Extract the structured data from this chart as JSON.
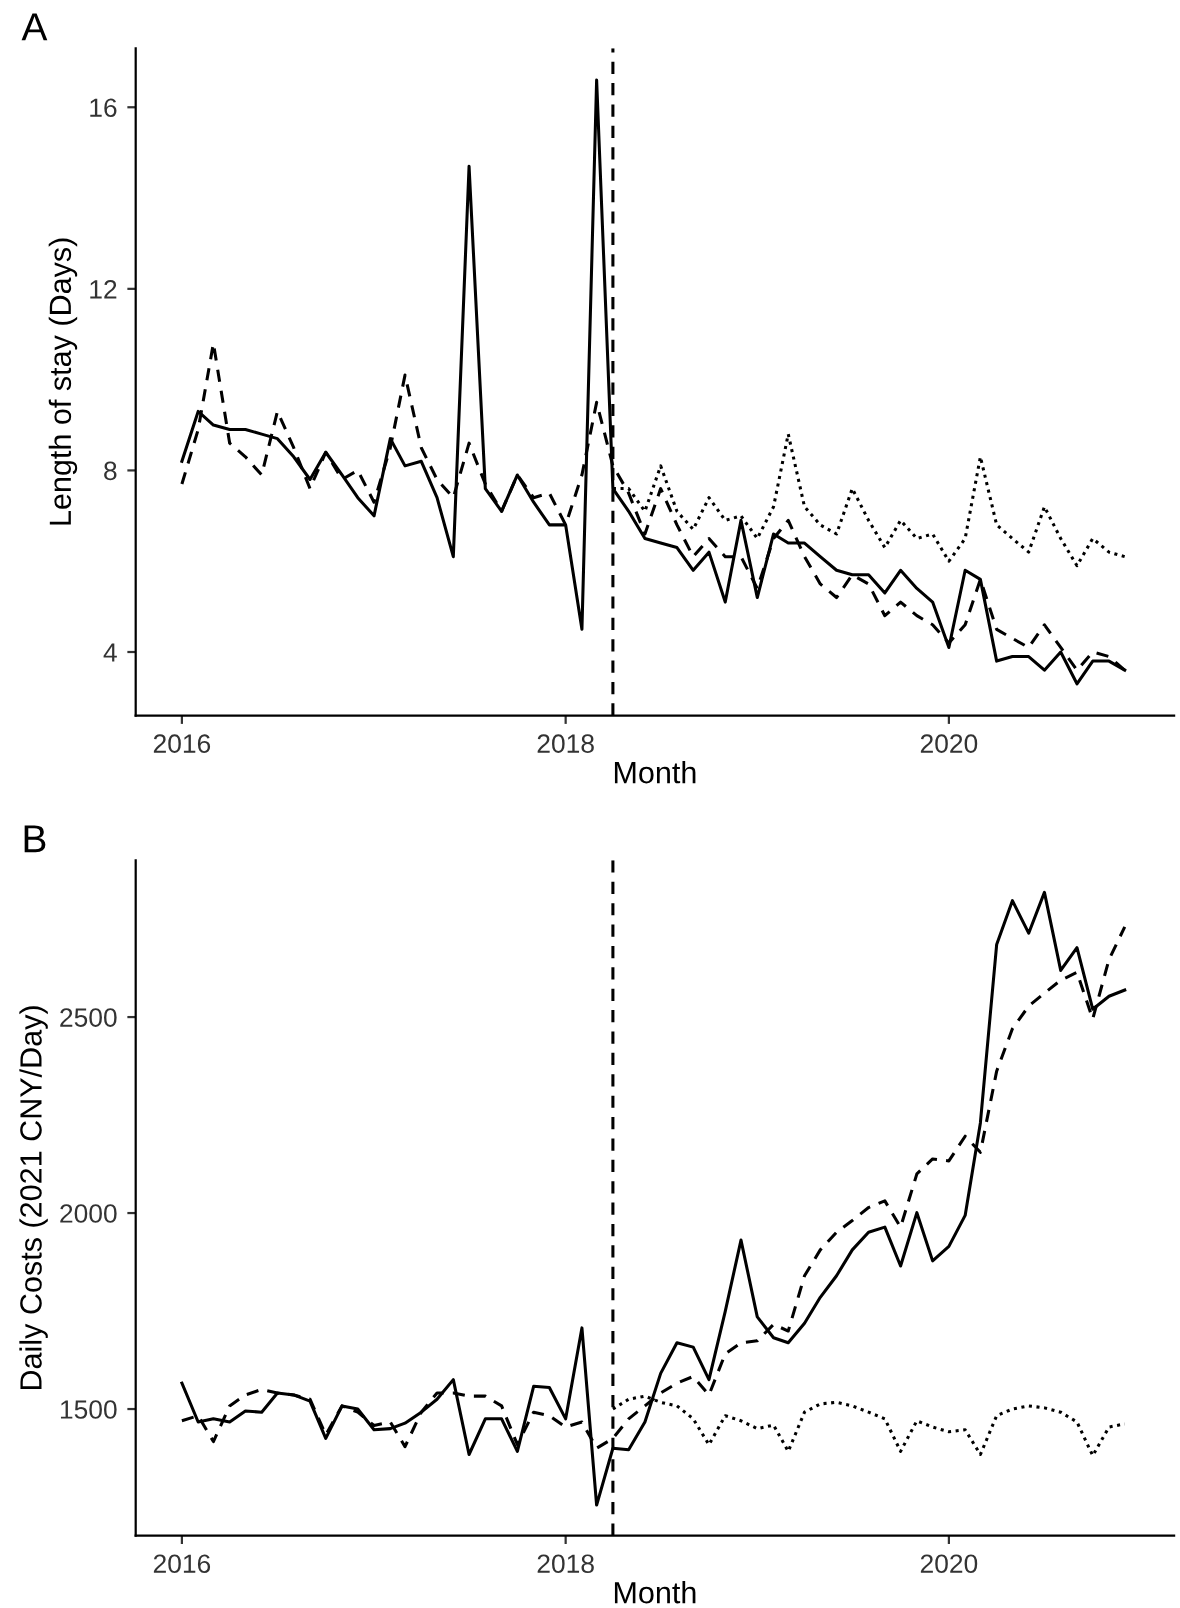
{
  "chart_data": [
    {
      "type": "line",
      "title": "A",
      "xlabel": "Month",
      "ylabel": "Length of stay (Days)",
      "x": [
        "2016-01",
        "2016-02",
        "2016-03",
        "2016-04",
        "2016-05",
        "2016-06",
        "2016-07",
        "2016-08",
        "2016-09",
        "2016-10",
        "2016-11",
        "2016-12",
        "2017-01",
        "2017-02",
        "2017-03",
        "2017-04",
        "2017-05",
        "2017-06",
        "2017-07",
        "2017-08",
        "2017-09",
        "2017-10",
        "2017-11",
        "2017-12",
        "2018-01",
        "2018-02",
        "2018-03",
        "2018-04",
        "2018-05",
        "2018-06",
        "2018-07",
        "2018-08",
        "2018-09",
        "2018-10",
        "2018-11",
        "2018-12",
        "2019-01",
        "2019-02",
        "2019-03",
        "2019-04",
        "2019-05",
        "2019-06",
        "2019-07",
        "2019-08",
        "2019-09",
        "2019-10",
        "2019-11",
        "2019-12",
        "2020-01",
        "2020-02",
        "2020-03",
        "2020-04",
        "2020-05",
        "2020-06",
        "2020-07",
        "2020-08",
        "2020-09",
        "2020-10",
        "2020-11",
        "2020-12"
      ],
      "series": [
        {
          "color": "#000000",
          "line_style": "solid",
          "values": [
            8.2,
            9.3,
            9.0,
            8.9,
            8.9,
            8.8,
            8.7,
            8.3,
            7.8,
            8.4,
            7.9,
            7.4,
            7.0,
            8.7,
            8.1,
            8.2,
            7.4,
            6.1,
            14.7,
            7.6,
            7.1,
            7.9,
            7.3,
            6.8,
            6.8,
            4.5,
            16.6,
            7.6,
            7.1,
            6.5,
            6.4,
            6.3,
            5.8,
            6.2,
            5.1,
            6.9,
            5.2,
            6.6,
            6.4,
            6.4,
            6.1,
            5.8,
            5.7,
            5.7,
            5.3,
            5.8,
            5.4,
            5.1,
            4.1,
            5.8,
            5.6,
            3.8,
            3.9,
            3.9,
            3.6,
            4.0,
            3.3,
            3.8,
            3.8,
            3.6
          ]
        },
        {
          "color": "#000000",
          "line_style": "dashed",
          "values": [
            7.7,
            8.9,
            10.8,
            8.6,
            8.3,
            7.9,
            9.3,
            8.5,
            7.6,
            8.4,
            7.8,
            8.0,
            7.3,
            8.5,
            10.1,
            8.5,
            7.8,
            7.4,
            8.6,
            7.7,
            7.1,
            7.9,
            7.4,
            7.5,
            6.8,
            7.9,
            9.5,
            8.1,
            7.5,
            6.6,
            7.6,
            6.8,
            6.1,
            6.5,
            6.1,
            6.1,
            5.4,
            6.5,
            6.9,
            6.1,
            5.5,
            5.2,
            5.7,
            5.5,
            4.8,
            5.1,
            4.8,
            4.6,
            4.2,
            4.6,
            5.6,
            4.5,
            4.3,
            4.1,
            4.6,
            4.1,
            3.6,
            4.0,
            3.9,
            3.6
          ]
        },
        {
          "color": "#000000",
          "line_style": "dotted",
          "values": [
            null,
            null,
            null,
            null,
            null,
            null,
            null,
            null,
            null,
            null,
            null,
            null,
            null,
            null,
            null,
            null,
            null,
            null,
            null,
            null,
            null,
            null,
            null,
            null,
            null,
            null,
            null,
            7.6,
            7.6,
            7.1,
            8.1,
            7.1,
            6.7,
            7.4,
            6.9,
            7.0,
            6.5,
            7.2,
            8.8,
            7.2,
            6.8,
            6.6,
            7.6,
            6.9,
            6.3,
            6.9,
            6.5,
            6.6,
            6.0,
            6.5,
            8.3,
            6.8,
            6.5,
            6.2,
            7.2,
            6.5,
            5.9,
            6.5,
            6.2,
            6.1
          ]
        }
      ],
      "xlim": [
        "2015-10-05",
        "2021-03-05"
      ],
      "ylim": [
        2.6,
        17.3
      ],
      "xticks": [
        {
          "value": "2016",
          "label": "2016"
        },
        {
          "value": "2018",
          "label": "2018"
        },
        {
          "value": "2020",
          "label": "2020"
        }
      ],
      "yticks": [
        4,
        8,
        12,
        16
      ],
      "ref_lines": [
        {
          "axis": "x",
          "value": "2018-04",
          "label": null,
          "color": "#000000",
          "line_style": "dashed"
        }
      ],
      "grid": false
    },
    {
      "type": "line",
      "title": "B",
      "xlabel": "Month",
      "ylabel": "Daily Costs (2021 CNY/Day)",
      "x": [
        "2016-01",
        "2016-02",
        "2016-03",
        "2016-04",
        "2016-05",
        "2016-06",
        "2016-07",
        "2016-08",
        "2016-09",
        "2016-10",
        "2016-11",
        "2016-12",
        "2017-01",
        "2017-02",
        "2017-03",
        "2017-04",
        "2017-05",
        "2017-06",
        "2017-07",
        "2017-08",
        "2017-09",
        "2017-10",
        "2017-11",
        "2017-12",
        "2018-01",
        "2018-02",
        "2018-03",
        "2018-04",
        "2018-05",
        "2018-06",
        "2018-07",
        "2018-08",
        "2018-09",
        "2018-10",
        "2018-11",
        "2018-12",
        "2019-01",
        "2019-02",
        "2019-03",
        "2019-04",
        "2019-05",
        "2019-06",
        "2019-07",
        "2019-08",
        "2019-09",
        "2019-10",
        "2019-11",
        "2019-12",
        "2020-01",
        "2020-02",
        "2020-03",
        "2020-04",
        "2020-05",
        "2020-06",
        "2020-07",
        "2020-08",
        "2020-09",
        "2020-10",
        "2020-11",
        "2020-12"
      ],
      "series": [
        {
          "color": "#000000",
          "line_style": "solid",
          "values": [
            1566,
            1467,
            1475,
            1467,
            1495,
            1492,
            1541,
            1536,
            1520,
            1425,
            1508,
            1500,
            1447,
            1450,
            1464,
            1492,
            1525,
            1575,
            1384,
            1475,
            1475,
            1392,
            1558,
            1555,
            1475,
            1707,
            1255,
            1400,
            1396,
            1467,
            1591,
            1669,
            1658,
            1575,
            1749,
            1931,
            1735,
            1682,
            1669,
            1719,
            1785,
            1840,
            1906,
            1951,
            1964,
            1865,
            2001,
            1878,
            1915,
            1994,
            2230,
            2685,
            2797,
            2714,
            2818,
            2619,
            2677,
            2520,
            2553,
            2569
          ]
        },
        {
          "color": "#000000",
          "line_style": "dashed",
          "values": [
            1470,
            1483,
            1417,
            1508,
            1536,
            1550,
            1541,
            1536,
            1525,
            1434,
            1508,
            1492,
            1458,
            1467,
            1404,
            1492,
            1541,
            1541,
            1533,
            1533,
            1508,
            1409,
            1492,
            1483,
            1454,
            1467,
            1400,
            1425,
            1475,
            1508,
            1541,
            1566,
            1583,
            1536,
            1641,
            1669,
            1674,
            1716,
            1699,
            1840,
            1906,
            1951,
            1981,
            2014,
            2031,
            1964,
            2100,
            2138,
            2133,
            2196,
            2155,
            2362,
            2470,
            2528,
            2561,
            2594,
            2614,
            2495,
            2647,
            2730
          ]
        },
        {
          "color": "#000000",
          "line_style": "dotted",
          "values": [
            null,
            null,
            null,
            null,
            null,
            null,
            null,
            null,
            null,
            null,
            null,
            null,
            null,
            null,
            null,
            null,
            null,
            null,
            null,
            null,
            null,
            null,
            null,
            null,
            null,
            null,
            null,
            1500,
            1525,
            1533,
            1517,
            1508,
            1475,
            1409,
            1483,
            1470,
            1450,
            1459,
            1392,
            1492,
            1513,
            1517,
            1508,
            1492,
            1475,
            1392,
            1470,
            1454,
            1442,
            1447,
            1384,
            1483,
            1500,
            1508,
            1503,
            1492,
            1467,
            1381,
            1454,
            1462
          ]
        }
      ],
      "xlim": [
        "2015-10-05",
        "2021-03-05"
      ],
      "ylim": [
        1177,
        2900
      ],
      "xticks": [
        {
          "value": "2016",
          "label": "2016"
        },
        {
          "value": "2018",
          "label": "2018"
        },
        {
          "value": "2020",
          "label": "2020"
        }
      ],
      "yticks": [
        1500,
        2000,
        2500
      ],
      "ref_lines": [
        {
          "axis": "x",
          "value": "2018-04",
          "label": null,
          "color": "#000000",
          "line_style": "dashed"
        }
      ],
      "grid": false
    }
  ]
}
